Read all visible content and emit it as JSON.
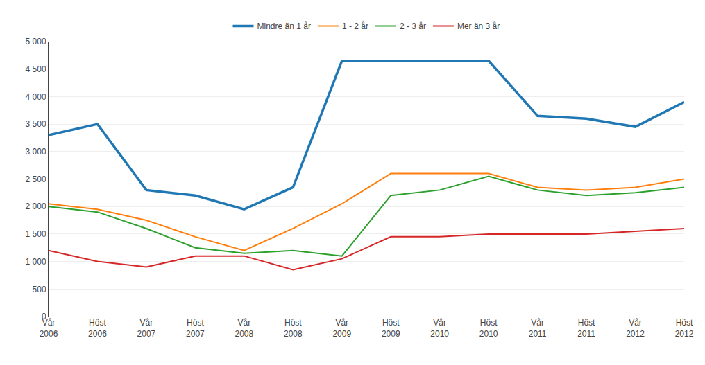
{
  "chart_data": {
    "type": "line",
    "categories": [
      "Vår\n2006",
      "Höst\n2006",
      "Vår\n2007",
      "Höst\n2007",
      "Vår\n2008",
      "Höst\n2008",
      "Vår\n2009",
      "Höst\n2009",
      "Vår\n2010",
      "Höst\n2010",
      "Vår\n2011",
      "Höst\n2011",
      "Vår\n2012",
      "Höst\n2012"
    ],
    "series": [
      {
        "name": "Mindre än 1 år",
        "values": [
          3300,
          3500,
          2300,
          2200,
          1950,
          2350,
          4650,
          4650,
          4650,
          4650,
          3650,
          3600,
          3450,
          3900
        ]
      },
      {
        "name": "1 - 2 år",
        "values": [
          2050,
          1950,
          1750,
          1450,
          1200,
          1600,
          2050,
          2600,
          2600,
          2600,
          2350,
          2300,
          2350,
          2500
        ]
      },
      {
        "name": "2 - 3 år",
        "values": [
          2000,
          1900,
          1600,
          1250,
          1150,
          1200,
          1100,
          2200,
          2300,
          2550,
          2300,
          2200,
          2250,
          2350
        ]
      },
      {
        "name": "Mer än 3 år",
        "values": [
          1200,
          1000,
          900,
          1100,
          1100,
          850,
          1050,
          1450,
          1450,
          1500,
          1500,
          1500,
          1550,
          1600
        ]
      }
    ],
    "ylim": [
      0,
      5000
    ],
    "yticks": [
      0,
      500,
      {
        "value": 1000,
        "label": "1 000"
      },
      {
        "value": 1500,
        "label": "1 500"
      },
      {
        "value": 2000,
        "label": "2 000"
      },
      {
        "value": 2500,
        "label": "2 500"
      },
      {
        "value": 3000,
        "label": "3 000"
      },
      {
        "value": 3500,
        "label": "3 500"
      },
      {
        "value": 4000,
        "label": "4 000"
      },
      {
        "value": 4500,
        "label": "4 500"
      },
      {
        "value": 5000,
        "label": "5 000"
      }
    ],
    "grid": "y",
    "legend": "top"
  }
}
